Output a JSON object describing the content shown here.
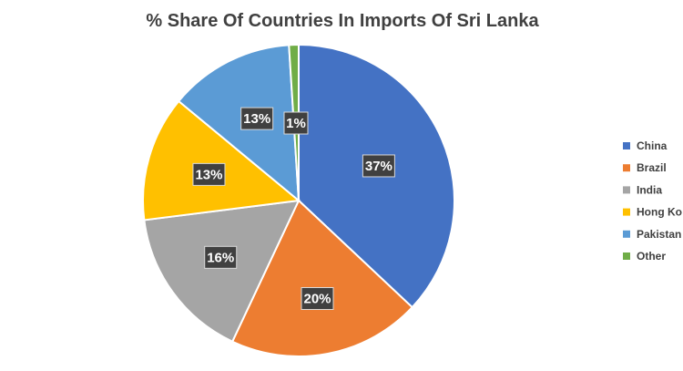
{
  "chart_data": {
    "type": "pie",
    "title": "% Share Of Countries In Imports Of Sri Lanka",
    "categories": [
      "China",
      "Brazil",
      "India",
      "Hong Kong",
      "Pakistan",
      "Other"
    ],
    "values": [
      37,
      20,
      16,
      13,
      13,
      1
    ],
    "labels": [
      "37%",
      "20%",
      "16%",
      "13%",
      "13%",
      "1%"
    ],
    "legend_labels": [
      "China",
      "Brazil",
      "India",
      "Hong Ko",
      "Pakistan",
      "Other"
    ],
    "colors": [
      "#4472C4",
      "#ED7D31",
      "#A5A5A5",
      "#FFC000",
      "#5B9BD5",
      "#70AD47"
    ],
    "legend_position": "right",
    "start_angle": "12 o'clock",
    "direction": "clockwise"
  }
}
